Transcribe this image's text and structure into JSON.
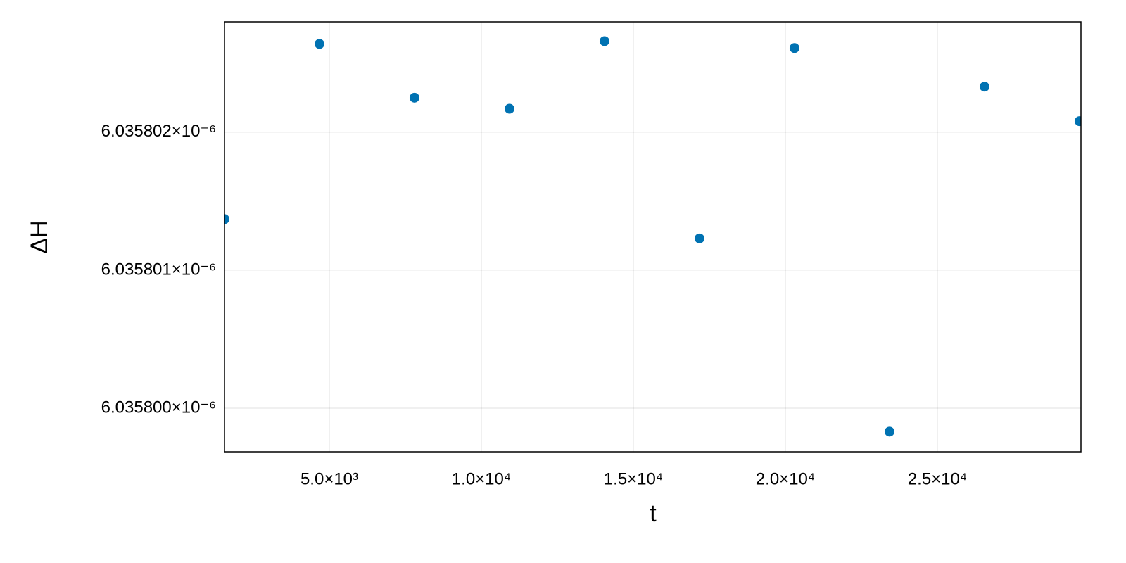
{
  "chart_data": {
    "type": "scatter",
    "x_label": "t",
    "y_label": "ΔH",
    "x": [
      1550,
      4675,
      7800,
      10925,
      14050,
      17175,
      20300,
      23425,
      26550,
      29675
    ],
    "series": [
      {
        "color": "#0072b2",
        "values": [
          6.03580137e-06,
          6.03580264e-06,
          6.03580225e-06,
          6.03580217e-06,
          6.03580266e-06,
          6.03580123e-06,
          6.03580261e-06,
          6.03579983e-06,
          6.03580233e-06,
          6.03580208e-06
        ]
      }
    ],
    "xlim": [
      1551,
      29722
    ],
    "ylim": [
      6.0357996837e-06,
      6.0358028e-06
    ],
    "xticks": [
      {
        "value": 5000,
        "label": "5.0×10³"
      },
      {
        "value": 10000,
        "label": "1.0×10⁴"
      },
      {
        "value": 15000,
        "label": "1.5×10⁴"
      },
      {
        "value": 20000,
        "label": "2.0×10⁴"
      },
      {
        "value": 25000,
        "label": "2.5×10⁴"
      }
    ],
    "yticks": [
      {
        "value": 6.0358e-06,
        "label": "6.035800×10⁻⁶"
      },
      {
        "value": 6.035801e-06,
        "label": "6.035801×10⁻⁶"
      },
      {
        "value": 6.035802e-06,
        "label": "6.035802×10⁻⁶"
      }
    ],
    "grid": true
  }
}
